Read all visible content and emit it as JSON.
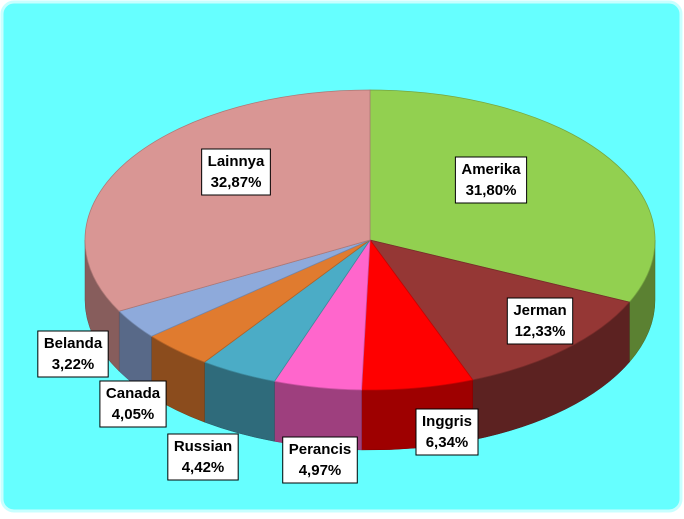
{
  "chart_data": {
    "type": "pie3d",
    "categories": [
      "Amerika",
      "Jerman",
      "Inggris",
      "Perancis",
      "Russian",
      "Canada",
      "Belanda",
      "Lainnya"
    ],
    "values": [
      31.8,
      12.33,
      6.34,
      4.97,
      4.42,
      4.05,
      3.22,
      32.87
    ],
    "value_labels": [
      "31,80%",
      "12,33%",
      "6,34%",
      "4,97%",
      "4,42%",
      "4,05%",
      "3,22%",
      "32,87%"
    ],
    "colors": [
      "#92d050",
      "#953735",
      "#ff0000",
      "#ff66cc",
      "#4bacc6",
      "#e07b2f",
      "#8eaadb",
      "#d99694"
    ]
  }
}
